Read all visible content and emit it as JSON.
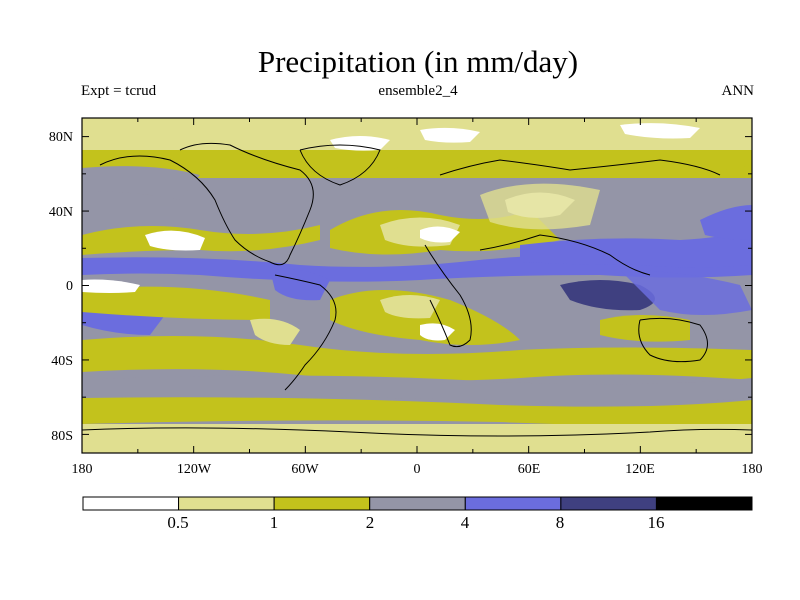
{
  "title": "Precipitation (in mm/day)",
  "subtitle_left": "Expt = tcrud",
  "subtitle_center": "ensemble2_4",
  "subtitle_right": "ANN",
  "lat_ticks": [
    "80N",
    "40N",
    "0",
    "40S",
    "80S"
  ],
  "lon_ticks": [
    "180",
    "120W",
    "60W",
    "0",
    "60E",
    "120E",
    "180"
  ],
  "colorbar": {
    "colors": [
      "#ffffff",
      "#e0df90",
      "#c3c21c",
      "#9495a7",
      "#6b6dde",
      "#3f4080",
      "#000000"
    ],
    "labels": [
      "0.5",
      "1",
      "2",
      "4",
      "8",
      "16"
    ]
  },
  "chart_data": {
    "type": "heatmap",
    "title": "Precipitation (in mm/day)",
    "xlabel": "",
    "ylabel": "",
    "xlim": [
      -180,
      180
    ],
    "ylim": [
      -90,
      90
    ],
    "x_ticks": [
      "180",
      "120W",
      "60W",
      "0",
      "60E",
      "120E",
      "180"
    ],
    "y_ticks": [
      "80N",
      "40N",
      "0",
      "40S",
      "80S"
    ],
    "levels_mm_per_day": [
      0.5,
      1,
      2,
      4,
      8,
      16
    ],
    "zonal_bands": [
      {
        "lat_range": [
          70,
          90
        ],
        "level": "0.5-1"
      },
      {
        "lat_range": [
          45,
          70
        ],
        "level": "1-2"
      },
      {
        "lat_range": [
          30,
          45
        ],
        "level": "2-4"
      },
      {
        "lat_range": [
          20,
          30
        ],
        "level": "1-2"
      },
      {
        "lat_range": [
          8,
          20
        ],
        "level": "2-4"
      },
      {
        "lat_range": [
          0,
          8
        ],
        "level": "4-8"
      },
      {
        "lat_range": [
          -15,
          0
        ],
        "level": "1-2"
      },
      {
        "lat_range": [
          -35,
          -15
        ],
        "level": "2-4"
      },
      {
        "lat_range": [
          -55,
          -35
        ],
        "level": "1-2"
      },
      {
        "lat_range": [
          -75,
          -55
        ],
        "level": "1-2"
      },
      {
        "lat_range": [
          -90,
          -75
        ],
        "level": "0.5-1"
      }
    ],
    "maximum_region": {
      "lon": 90,
      "lat": -5,
      "level": "8-16"
    }
  }
}
